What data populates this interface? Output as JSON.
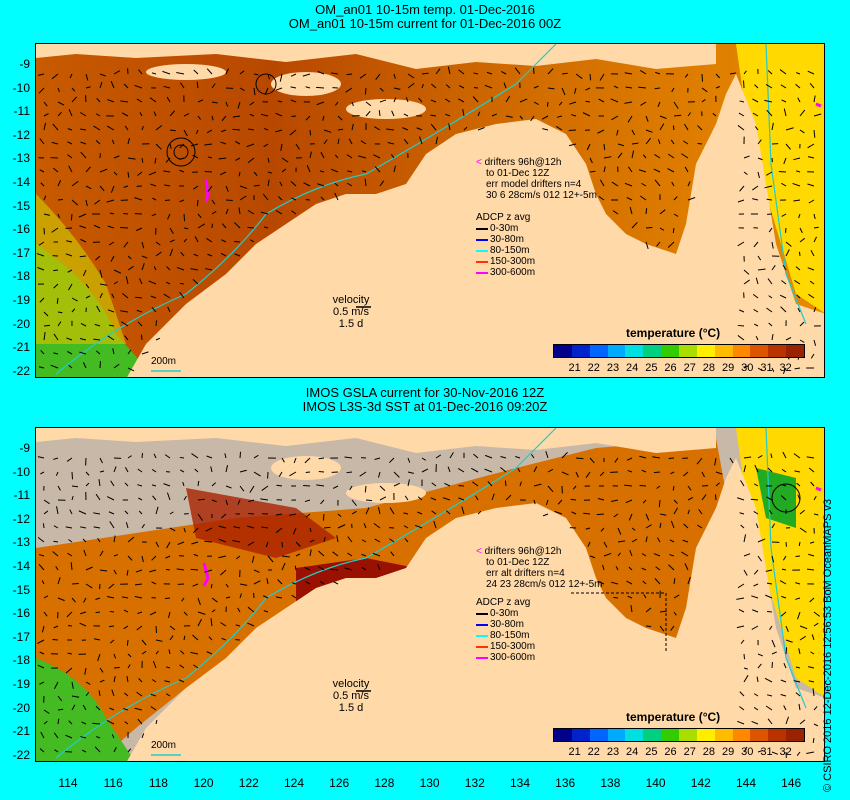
{
  "top": {
    "title_line1": "OM_an01 10-15m temp. 01-Dec-2016",
    "title_line2": "OM_an01 10-15m current for 01-Dec-2016 00Z",
    "drifters_line1": "drifters 96h@12h",
    "drifters_line2": "to 01-Dec 12Z",
    "drifters_line3": "err model drifters n=4",
    "drifters_line4": "30 6 28cm/s 012 12+-5m",
    "contour_label": "200m",
    "velocity_label": "velocity",
    "velocity_value": "0.5 m/s",
    "velocity_time": "1.5 d"
  },
  "bottom": {
    "title_line1": "IMOS GSLA current for 30-Nov-2016 12Z",
    "title_line2": "IMOS L3S-3d SST at 01-Dec-2016 09:20Z",
    "drifters_line1": "drifters 96h@12h",
    "drifters_line2": "to 01-Dec 12Z",
    "drifters_line3": "err alt drifters n=4",
    "drifters_line4": "24 23 28cm/s 012 12+-5m",
    "contour_label": "200m",
    "velocity_label": "velocity",
    "velocity_value": "0.5 m/s",
    "velocity_time": "1.5 d"
  },
  "adcp": {
    "title": "ADCP z avg",
    "items": [
      {
        "label": "0-30m",
        "color": "#000000"
      },
      {
        "label": "30-80m",
        "color": "#0000ff"
      },
      {
        "label": "80-150m",
        "color": "#00ffff"
      },
      {
        "label": "150-300m",
        "color": "#ff3300"
      },
      {
        "label": "300-600m",
        "color": "#ff00ff"
      }
    ]
  },
  "legend": {
    "title": "temperature (°C)",
    "ticks": [
      "21",
      "22",
      "23",
      "24",
      "25",
      "26",
      "27",
      "28",
      "29",
      "30",
      "31",
      "32"
    ],
    "colors": [
      "#00008b",
      "#0022cc",
      "#0066ff",
      "#00aaff",
      "#00e0e0",
      "#00d080",
      "#33cc00",
      "#aadd00",
      "#ffee00",
      "#ffbb00",
      "#ff8800",
      "#dd5500",
      "#b83300",
      "#992200"
    ]
  },
  "y_ticks": [
    "-9",
    "-10",
    "-11",
    "-12",
    "-13",
    "-14",
    "-15",
    "-16",
    "-17",
    "-18",
    "-19",
    "-20",
    "-21",
    "-22"
  ],
  "x_ticks": [
    "114",
    "116",
    "118",
    "120",
    "122",
    "124",
    "126",
    "128",
    "130",
    "132",
    "134",
    "136",
    "138",
    "140",
    "142",
    "144",
    "146"
  ],
  "copyright": "© CSIRO 2016  12-Dec-2016 12:56:53 BoM OceanMAPS v3"
}
